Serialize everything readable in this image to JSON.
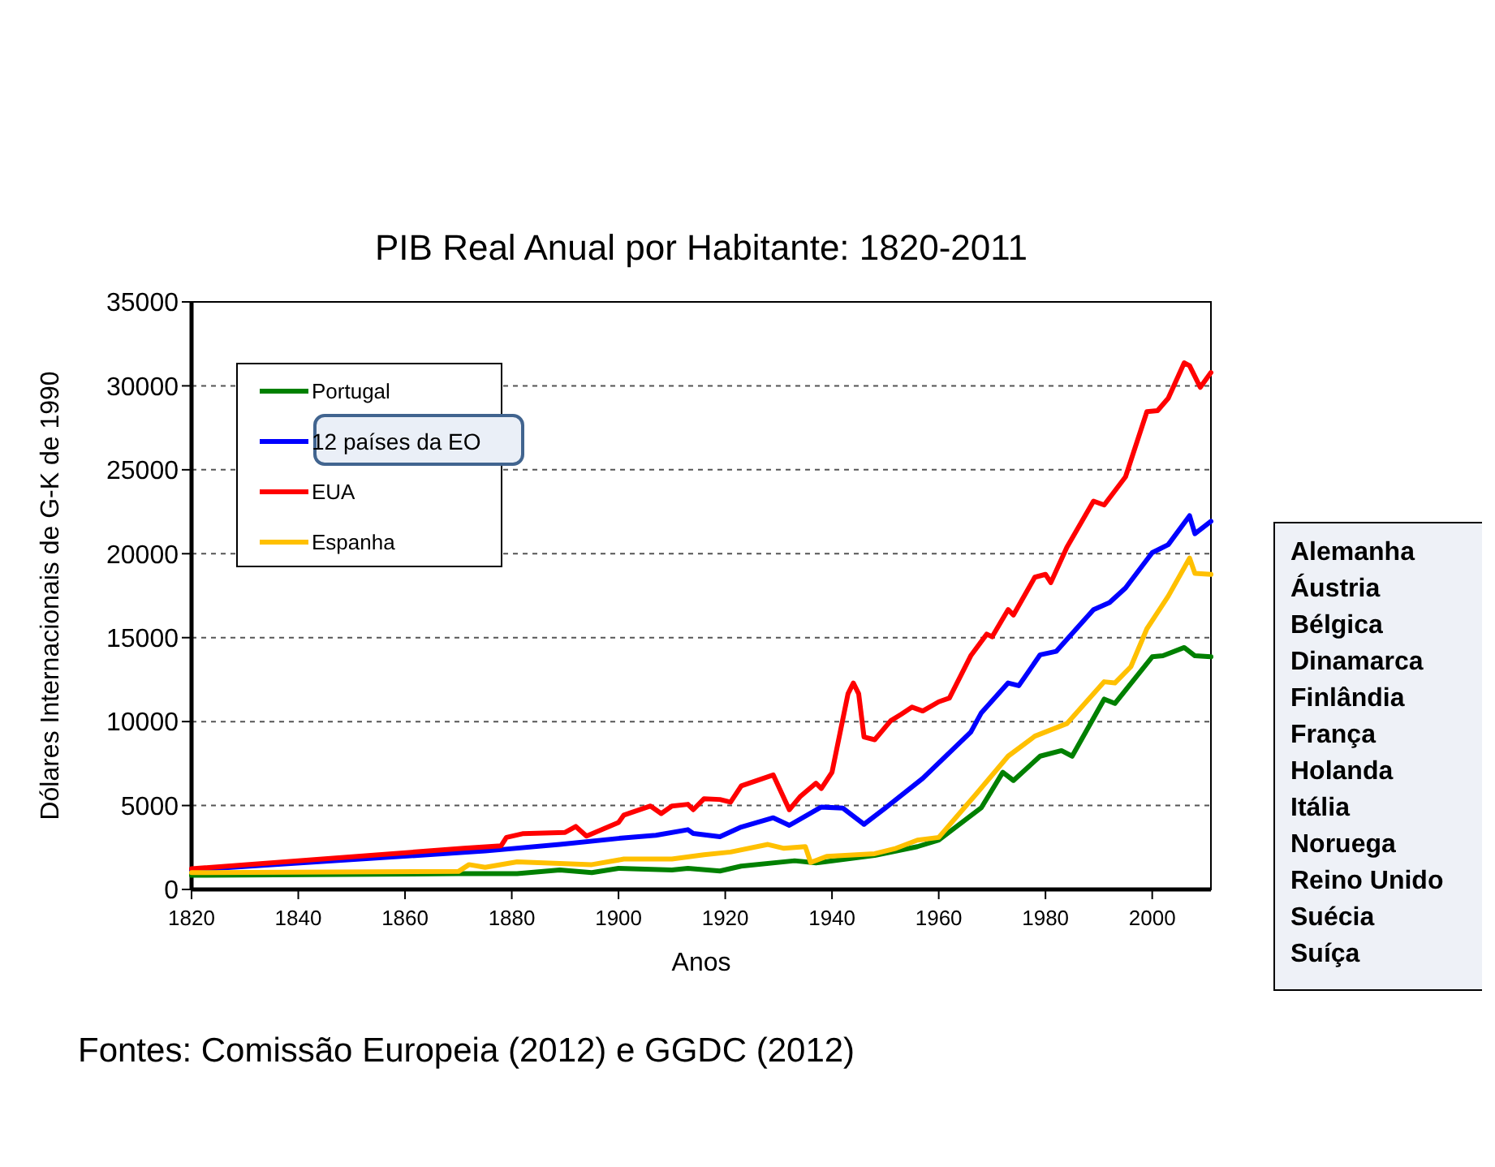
{
  "chart_data": {
    "type": "line",
    "title": "PIB Real Anual por Habitante: 1820-2011",
    "xlabel": "Anos",
    "ylabel": "Dólares Internacionais de G-K de 1990",
    "xlim": [
      1820,
      2011
    ],
    "xticks": [
      1820,
      1840,
      1860,
      1880,
      1900,
      1920,
      1940,
      1960,
      1980,
      2000
    ],
    "ylim": [
      0,
      35000
    ],
    "yticks": [
      0,
      5000,
      10000,
      15000,
      20000,
      25000,
      30000,
      35000
    ],
    "grid": "y",
    "legend": "top left",
    "marker": "none",
    "line_style": "solid",
    "annotations": [
      "Fontes: Comissão Europeia (2012) e GGDC (2012)",
      "Alemanha\nÁustria\nBélgica\nDinamarca\nFinlândia\nFrança\nHolanda\nItália\nNoruega\nReino Unido\nSuécia\nSuíça"
    ],
    "series": [
      {
        "name": "Portugal",
        "color": "#008000",
        "x": [
          1820,
          1870,
          1881,
          1889,
          1895,
          1900,
          1910,
          1913,
          1919,
          1923,
          1933,
          1937,
          1948,
          1956,
          1960,
          1968,
          1972,
          1974,
          1979,
          1983,
          1985,
          1991,
          1993,
          2000,
          2002,
          2006,
          2008,
          2011
        ],
        "values": [
          840,
          940,
          940,
          1160,
          1000,
          1260,
          1160,
          1260,
          1100,
          1390,
          1710,
          1580,
          2030,
          2550,
          2940,
          4880,
          6980,
          6490,
          7940,
          8270,
          7940,
          11340,
          11080,
          13860,
          13920,
          14410,
          13920,
          13860
        ]
      },
      {
        "name": "12 países da EO",
        "color": "#0000ff",
        "x": [
          1820,
          1875,
          1889,
          1900,
          1907,
          1913,
          1914,
          1919,
          1923,
          1929,
          1932,
          1938,
          1942,
          1946,
          1950,
          1957,
          1966,
          1968,
          1973,
          1975,
          1979,
          1982,
          1989,
          1992,
          1995,
          2000,
          2003,
          2007,
          2008,
          2011
        ],
        "values": [
          1160,
          2290,
          2680,
          3040,
          3230,
          3560,
          3340,
          3140,
          3720,
          4270,
          3820,
          4910,
          4850,
          3880,
          4850,
          6620,
          9370,
          10530,
          12300,
          12140,
          13980,
          14180,
          16670,
          17090,
          17960,
          20060,
          20540,
          22260,
          21190,
          21930
        ]
      },
      {
        "name": "EUA",
        "color": "#ff0000",
        "x": [
          1820,
          1871,
          1878,
          1879,
          1882,
          1890,
          1892,
          1894,
          1900,
          1901,
          1906,
          1908,
          1910,
          1913,
          1914,
          1916,
          1919,
          1921,
          1923,
          1926,
          1929,
          1932,
          1934,
          1937,
          1938,
          1940,
          1943,
          1944,
          1945,
          1946,
          1948,
          1951,
          1953,
          1955,
          1957,
          1960,
          1962,
          1966,
          1969,
          1970,
          1973,
          1974,
          1978,
          1980,
          1981,
          1984,
          1989,
          1991,
          1995,
          1999,
          2001,
          2003,
          2006,
          2007,
          2009,
          2011
        ],
        "values": [
          1230,
          2450,
          2600,
          3100,
          3320,
          3400,
          3750,
          3180,
          3990,
          4430,
          4970,
          4520,
          4970,
          5070,
          4750,
          5400,
          5360,
          5200,
          6170,
          6500,
          6820,
          4750,
          5520,
          6330,
          6010,
          6980,
          11660,
          12300,
          11660,
          9080,
          8920,
          10050,
          10440,
          10860,
          10630,
          11180,
          11400,
          13920,
          15210,
          15050,
          16670,
          16350,
          18600,
          18770,
          18280,
          20380,
          23130,
          22900,
          24580,
          28460,
          28520,
          29260,
          31370,
          31200,
          29910,
          30790
        ]
      },
      {
        "name": "Espanha",
        "color": "#ffc000",
        "x": [
          1820,
          1870,
          1872,
          1875,
          1881,
          1895,
          1901,
          1910,
          1916,
          1921,
          1928,
          1931,
          1935,
          1936,
          1939,
          1948,
          1952,
          1956,
          1960,
          1967,
          1973,
          1978,
          1984,
          1991,
          1993,
          1996,
          1999,
          2003,
          2007,
          2008,
          2011
        ],
        "values": [
          1000,
          1070,
          1480,
          1320,
          1640,
          1480,
          1810,
          1810,
          2070,
          2230,
          2680,
          2450,
          2550,
          1610,
          1970,
          2130,
          2450,
          2940,
          3100,
          5680,
          7940,
          9130,
          9880,
          12370,
          12300,
          13270,
          15530,
          17470,
          19740,
          18830,
          18770
        ]
      }
    ]
  }
}
